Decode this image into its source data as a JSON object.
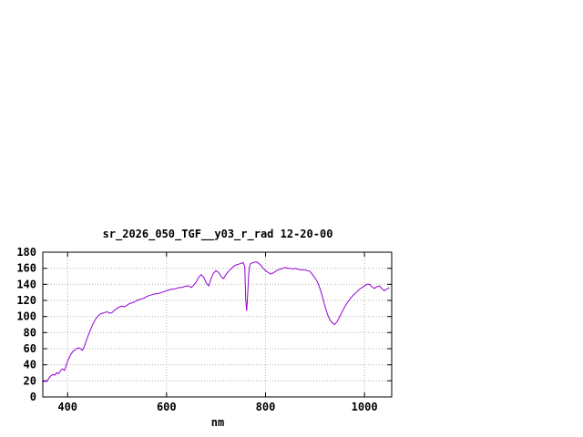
{
  "chart_data": {
    "type": "line",
    "title": "sr_2026_050_TGF__y03_r_rad 12-20-00",
    "xlabel": "nm",
    "ylabel": "",
    "xlim": [
      350,
      1055
    ],
    "ylim": [
      0,
      180
    ],
    "xticks": [
      400,
      600,
      800,
      1000
    ],
    "yticks": [
      0,
      20,
      40,
      60,
      80,
      100,
      120,
      140,
      160,
      180
    ],
    "grid": true,
    "legend_position": "none",
    "line_color": "#9400d3",
    "series": [
      {
        "name": "sr_2026_050_TGF__y03_r_rad",
        "x": [
          350,
          354,
          358,
          362,
          366,
          370,
          374,
          378,
          382,
          386,
          390,
          394,
          398,
          402,
          406,
          410,
          414,
          418,
          422,
          426,
          430,
          434,
          438,
          442,
          446,
          450,
          454,
          458,
          462,
          466,
          470,
          475,
          480,
          485,
          490,
          495,
          500,
          505,
          510,
          515,
          520,
          525,
          530,
          535,
          540,
          545,
          550,
          555,
          560,
          565,
          570,
          575,
          580,
          585,
          590,
          595,
          600,
          605,
          610,
          615,
          620,
          625,
          630,
          635,
          640,
          645,
          650,
          655,
          660,
          665,
          670,
          675,
          680,
          685,
          690,
          695,
          700,
          705,
          710,
          715,
          720,
          725,
          730,
          735,
          740,
          745,
          750,
          755,
          758,
          760,
          762,
          764,
          766,
          768,
          770,
          775,
          780,
          785,
          790,
          795,
          800,
          805,
          810,
          815,
          820,
          825,
          830,
          835,
          840,
          845,
          850,
          855,
          860,
          865,
          870,
          875,
          880,
          885,
          890,
          895,
          900,
          905,
          910,
          915,
          920,
          925,
          930,
          935,
          940,
          945,
          950,
          955,
          960,
          965,
          970,
          975,
          980,
          985,
          990,
          995,
          1000,
          1005,
          1010,
          1015,
          1020,
          1025,
          1030,
          1035,
          1040,
          1045,
          1050
        ],
        "y": [
          18,
          20,
          19,
          23,
          26,
          28,
          27,
          30,
          29,
          33,
          35,
          33,
          41,
          47,
          52,
          56,
          58,
          60,
          61,
          60,
          58,
          63,
          70,
          77,
          83,
          89,
          94,
          98,
          101,
          103,
          104,
          105,
          106,
          104,
          105,
          108,
          110,
          112,
          113,
          112,
          114,
          116,
          117,
          118,
          120,
          121,
          122,
          123,
          125,
          126,
          127,
          128,
          128,
          129,
          130,
          131,
          132,
          133,
          134,
          134,
          135,
          136,
          136,
          137,
          138,
          138,
          136,
          139,
          143,
          149,
          152,
          149,
          142,
          138,
          147,
          154,
          157,
          155,
          150,
          147,
          152,
          156,
          159,
          162,
          164,
          165,
          166,
          167,
          162,
          122,
          107,
          128,
          152,
          163,
          166,
          167,
          168,
          167,
          164,
          160,
          157,
          155,
          153,
          154,
          156,
          158,
          159,
          160,
          161,
          160,
          160,
          159,
          160,
          159,
          158,
          158,
          158,
          157,
          156,
          152,
          148,
          143,
          135,
          125,
          113,
          103,
          96,
          92,
          90,
          94,
          100,
          106,
          112,
          117,
          121,
          125,
          128,
          131,
          134,
          136,
          138,
          140,
          140,
          137,
          135,
          137,
          138,
          135,
          132,
          134,
          136
        ]
      }
    ]
  }
}
